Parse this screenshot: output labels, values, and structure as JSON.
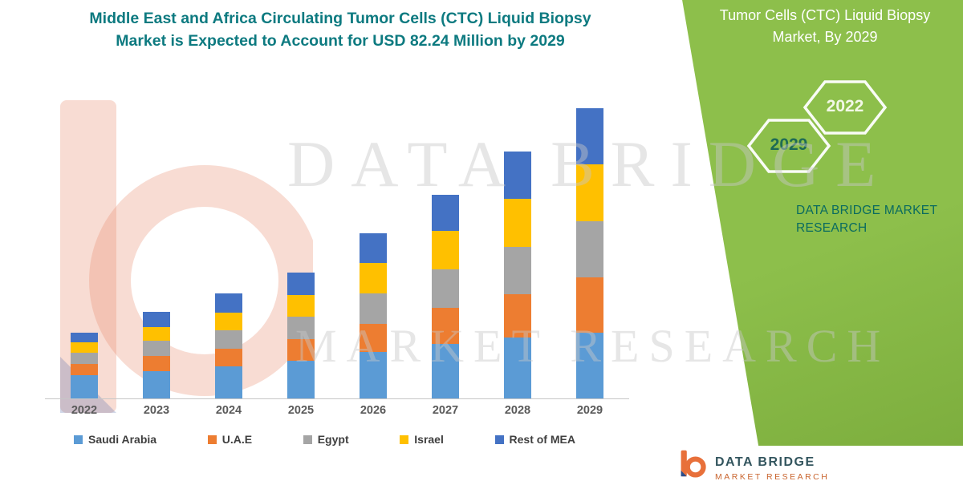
{
  "header": {
    "title_line1": "Middle East and Africa Circulating Tumor Cells (CTC) Liquid Biopsy",
    "title_line2": "Market is Expected to Account for USD 82.24 Million by 2029",
    "title_color": "#0d7a80"
  },
  "chart_data": {
    "type": "bar",
    "stacked": true,
    "title": "Middle East and Africa Circulating Tumor Cells (CTC) Liquid Biopsy Market is Expected to Account for USD 82.24 Million by 2029",
    "unit": "USD Million",
    "categories": [
      "2022",
      "2023",
      "2024",
      "2025",
      "2026",
      "2027",
      "2028",
      "2029"
    ],
    "series": [
      {
        "name": "Saudi Arabia",
        "color": "#5B9BD5",
        "values": [
          6.5,
          7.8,
          9.2,
          10.8,
          13.2,
          15.5,
          17.3,
          18.6
        ]
      },
      {
        "name": "U.A.E",
        "color": "#ED7D31",
        "values": [
          3.2,
          4.2,
          5.0,
          6.0,
          8.0,
          10.2,
          12.3,
          15.6
        ]
      },
      {
        "name": "Egypt",
        "color": "#A5A5A5",
        "values": [
          3.2,
          4.3,
          5.2,
          6.3,
          8.6,
          10.8,
          13.4,
          16.0
        ]
      },
      {
        "name": "Israel",
        "color": "#FFC000",
        "values": [
          2.9,
          4.0,
          5.0,
          6.2,
          8.6,
          10.9,
          13.6,
          16.2
        ]
      },
      {
        "name": "Rest of MEA",
        "color": "#4472C4",
        "values": [
          2.9,
          4.2,
          5.3,
          6.5,
          8.3,
          10.4,
          13.3,
          15.84
        ]
      }
    ],
    "total_2029": 82.24,
    "ylim": [
      0,
      90
    ],
    "grid": false,
    "legend_position": "bottom"
  },
  "side_panel": {
    "bg_color": "#8DBF4B",
    "heading_line1": "Tumor Cells (CTC) Liquid Biopsy",
    "heading_line2": "Market, By 2029",
    "hex_year_left": "2029",
    "hex_year_right": "2022",
    "brand_line1": "DATA BRIDGE MARKET",
    "brand_line2": "RESEARCH"
  },
  "watermark": {
    "line1": "DATA BRIDGE",
    "line2": "MARKET RESEARCH"
  },
  "footer_logo": {
    "name": "DATA BRIDGE",
    "subtitle": "MARKET RESEARCH"
  }
}
